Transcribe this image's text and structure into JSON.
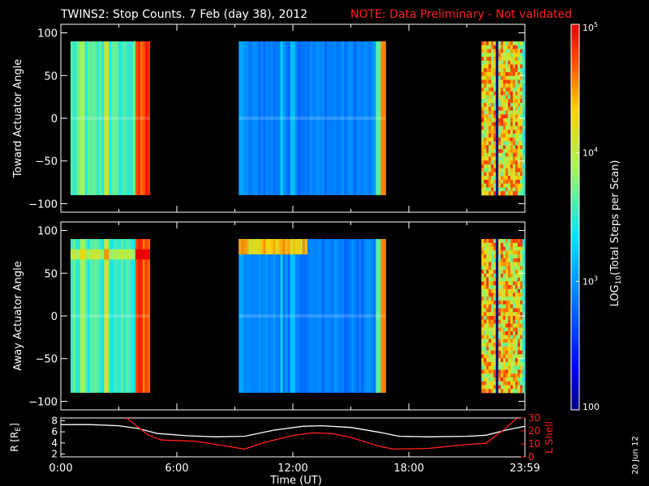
{
  "header": {
    "title": "TWINS2: Stop Counts.  7 Feb (day  38), 2012",
    "note": "NOTE: Data Preliminary - Not validated",
    "note_color": "#ff2020"
  },
  "footer": {
    "xlabel": "Time (UT)",
    "side_date": "20 Jun 12"
  },
  "colorbar": {
    "label": "LOG10(Total Steps per Scan)",
    "label_base": "LOG",
    "label_sub": "10",
    "label_rest": "(Total Steps per Scan)",
    "ticks": [
      {
        "base": "10",
        "exp": "5",
        "value": 100000
      },
      {
        "base": "10",
        "exp": "4",
        "value": 10000
      },
      {
        "base": "10",
        "exp": "3",
        "value": 1000
      },
      {
        "base": "100",
        "exp": "",
        "value": 100
      }
    ],
    "scale": "log",
    "range": [
      100,
      100000
    ]
  },
  "chart_data": [
    {
      "type": "heatmap",
      "ylabel": "Toward Actuator Angle",
      "x_range_hours": [
        0,
        24
      ],
      "ylim": [
        -110,
        110
      ],
      "y_ticks": [
        100,
        50,
        0,
        -50,
        -100
      ],
      "y_tick_labels": [
        "100",
        "50",
        "0",
        "−50",
        "−100"
      ],
      "data_y_range": [
        -90,
        90
      ],
      "data_segments": [
        {
          "start": 0.5,
          "end": 4.6,
          "profile": "green"
        },
        {
          "start": 9.2,
          "end": 16.8,
          "profile": "blue"
        },
        {
          "start": 21.75,
          "end": 24.0,
          "profile": "mixed"
        }
      ]
    },
    {
      "type": "heatmap",
      "ylabel": "Away Actuator Angle",
      "x_range_hours": [
        0,
        24
      ],
      "ylim": [
        -110,
        110
      ],
      "y_ticks": [
        100,
        50,
        0,
        -50,
        -100
      ],
      "y_tick_labels": [
        "100",
        "50",
        "0",
        "−50",
        "−100"
      ],
      "data_y_range": [
        -90,
        90
      ],
      "data_segments": [
        {
          "start": 0.5,
          "end": 4.6,
          "profile": "green"
        },
        {
          "start": 9.2,
          "end": 16.8,
          "profile": "blue"
        },
        {
          "start": 21.75,
          "end": 24.0,
          "profile": "mixed"
        }
      ]
    },
    {
      "type": "line",
      "ylabel": "R [RE]",
      "ylabel_main": "R [R",
      "ylabel_sub": "E",
      "ylabel_end": "]",
      "ylabel_right": "L Shell",
      "ylim": [
        1.5,
        8.5
      ],
      "y_ticks": [
        2,
        4,
        6,
        8
      ],
      "y_tick_labels": [
        "2",
        "4",
        "6",
        "8"
      ],
      "ylim_right": [
        0,
        30
      ],
      "y_ticks_right": [
        0,
        10,
        20,
        30
      ],
      "y_tick_labels_right": [
        "0",
        "10",
        "20",
        "30"
      ],
      "x_ticks": [
        0,
        6,
        12,
        18,
        24
      ],
      "x_tick_labels": [
        "0:00",
        "6:00",
        "12:00",
        "18:00",
        "23:59"
      ],
      "series": [
        {
          "axis": "left",
          "color": "#ffffff",
          "points": [
            [
              0,
              7.3
            ],
            [
              1.5,
              7.3
            ],
            [
              3,
              7.1
            ],
            [
              4,
              6.6
            ],
            [
              5,
              5.7
            ],
            [
              6.5,
              5.3
            ],
            [
              8,
              5.1
            ],
            [
              9.5,
              5.2
            ],
            [
              11,
              6.3
            ],
            [
              12.5,
              7.0
            ],
            [
              13.5,
              7.1
            ],
            [
              15,
              6.8
            ],
            [
              16.5,
              5.9
            ],
            [
              17.5,
              5.2
            ],
            [
              19,
              5.1
            ],
            [
              21,
              5.2
            ],
            [
              22,
              5.4
            ],
            [
              23,
              6.3
            ],
            [
              24,
              7.0
            ]
          ]
        },
        {
          "axis": "right",
          "color": "#ff2020",
          "points": [
            [
              3.4,
              30
            ],
            [
              4.5,
              17
            ],
            [
              5.2,
              13
            ],
            [
              7,
              12
            ],
            [
              8.5,
              8.5
            ],
            [
              9.5,
              6
            ],
            [
              10.5,
              11
            ],
            [
              12,
              16.5
            ],
            [
              13,
              18.5
            ],
            [
              14,
              18
            ],
            [
              15,
              15
            ],
            [
              16.5,
              8
            ],
            [
              17.2,
              6
            ],
            [
              19,
              6.5
            ],
            [
              21,
              9.5
            ],
            [
              22,
              10.5
            ],
            [
              23,
              22
            ],
            [
              23.6,
              30
            ]
          ]
        }
      ]
    }
  ]
}
